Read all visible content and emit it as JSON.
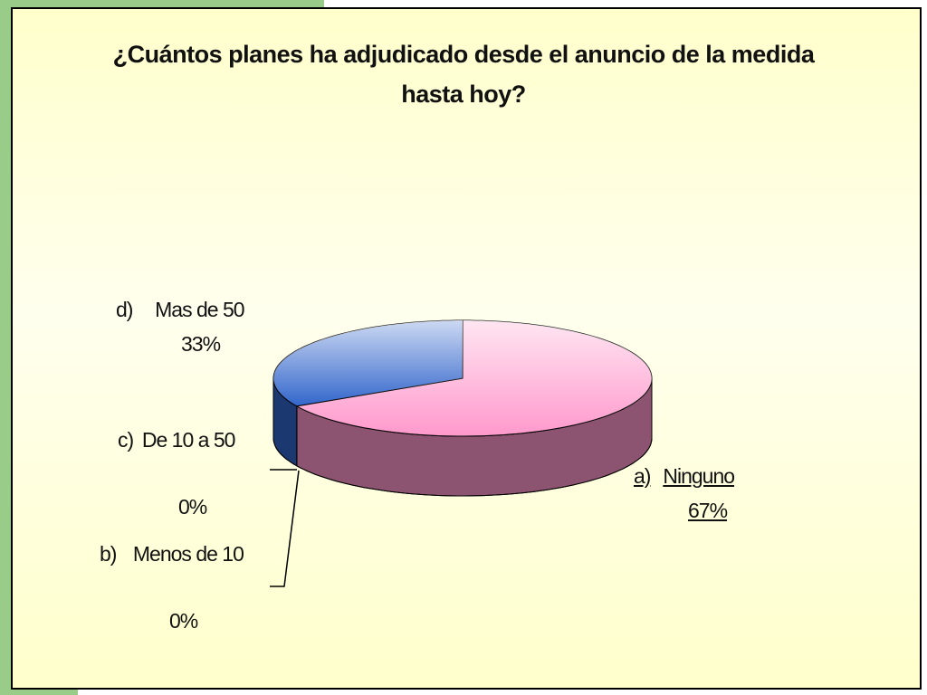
{
  "chart_data": {
    "type": "pie",
    "title": "¿Cuántos planes ha adjudicado desde el anuncio de la medida hasta hoy?",
    "categories": [
      "a)\tNinguno",
      "b)\tMenos de 10",
      "c)\tDe 10 a 50",
      "d)\tMas de 50"
    ],
    "values": [
      67,
      0,
      0,
      33
    ],
    "value_labels": [
      "67%",
      "0%",
      "0%",
      "33%"
    ],
    "colors": [
      "#ff99cc",
      "#99ccff",
      "#ccffcc",
      "#3366cc"
    ]
  }
}
